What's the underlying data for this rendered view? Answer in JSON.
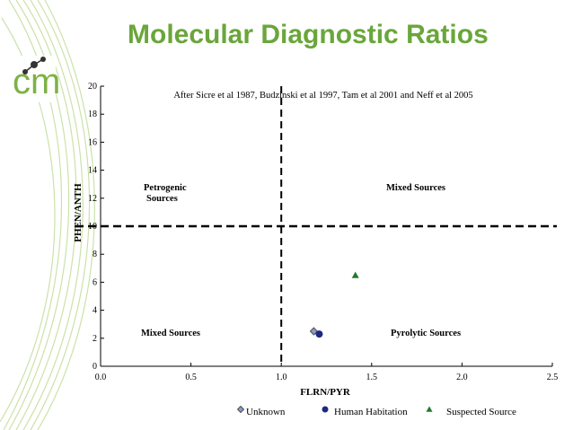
{
  "slide": {
    "title": "Molecular Diagnostic Ratios",
    "logo_text": "cm",
    "colors": {
      "brand_green": "#6aa63b",
      "light_green": "#c9e3a8"
    }
  },
  "chart_data": {
    "type": "scatter",
    "title": "",
    "xlabel": "FLRN/PYR",
    "ylabel": "PHEN/ANTH",
    "xlim": [
      0,
      2.5
    ],
    "ylim": [
      0,
      20
    ],
    "xticks": [
      "0.0",
      "0.5",
      "1.0",
      "1.5",
      "2.0",
      "2.5"
    ],
    "yticks": [
      "0",
      "2",
      "4",
      "6",
      "8",
      "10",
      "12",
      "14",
      "16",
      "18",
      "20"
    ],
    "grid": false,
    "legend_position": "bottom",
    "citation": "After Sicre et al 1987, Budzinski et al 1997, Tam et al 2001 and Neff et al 2005",
    "thresholds": {
      "x": 1.0,
      "y": 10
    },
    "region_labels": [
      {
        "text": "Petrogenic Sources",
        "lines": [
          "Petrogenic",
          "Sources"
        ],
        "quadrant": "top-left"
      },
      {
        "text": "Mixed Sources",
        "lines": [
          "Mixed Sources"
        ],
        "quadrant": "top-right"
      },
      {
        "text": "Mixed Sources",
        "lines": [
          "Mixed Sources"
        ],
        "quadrant": "bottom-left"
      },
      {
        "text": "Pyrolytic Sources",
        "lines": [
          "Pyrolytic Sources"
        ],
        "quadrant": "bottom-right"
      }
    ],
    "series": [
      {
        "name": "Unknown",
        "marker": "diamond",
        "color": "#8a9bc4",
        "points": [
          {
            "x": 1.18,
            "y": 2.5
          }
        ]
      },
      {
        "name": "Human Habitation",
        "marker": "circle",
        "color": "#1c2a80",
        "points": [
          {
            "x": 1.21,
            "y": 2.3
          }
        ]
      },
      {
        "name": "Suspected Source",
        "marker": "triangle",
        "color": "#1f7a2e",
        "points": [
          {
            "x": 1.41,
            "y": 6.5
          }
        ]
      }
    ]
  }
}
